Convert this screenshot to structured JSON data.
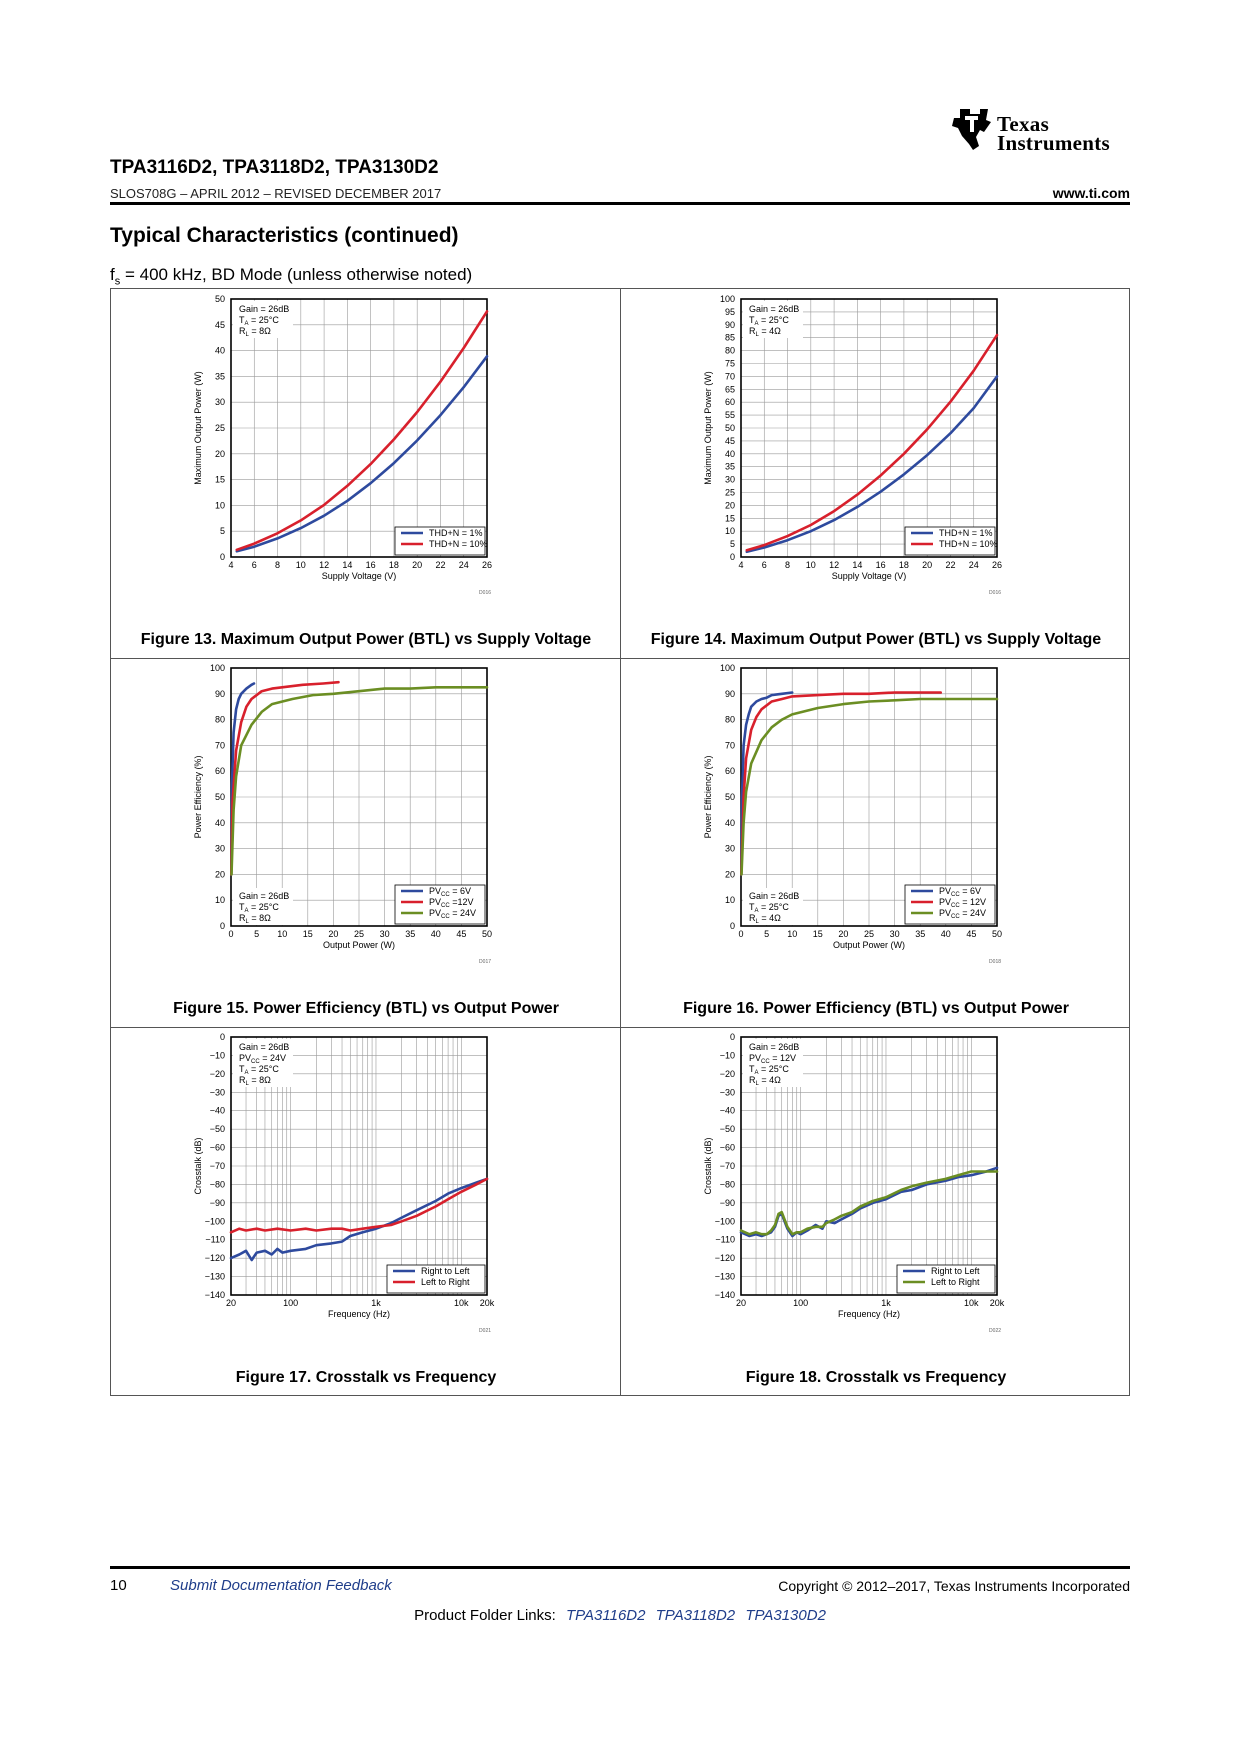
{
  "header": {
    "logo_line1": "Texas",
    "logo_line2": "Instruments",
    "title": "TPA3116D2, TPA3118D2, TPA3130D2",
    "doc_id": "SLOS708G – APRIL 2012 – REVISED DECEMBER 2017",
    "url": "www.ti.com"
  },
  "section": {
    "heading": "Typical Characteristics (continued)",
    "conditions_prefix": "f",
    "conditions_sub": "s",
    "conditions_rest": " = 400 kHz, BD Mode (unless otherwise noted)"
  },
  "footer": {
    "page_number": "10",
    "feedback": "Submit Documentation Feedback",
    "copyright": "Copyright © 2012–2017, Texas Instruments Incorporated",
    "folder_links_label": "Product Folder Links:",
    "folder_links": [
      "TPA3116D2",
      "TPA3118D2",
      "TPA3130D2"
    ]
  },
  "colors": {
    "blue": "#2e4a9e",
    "red": "#d8202c",
    "green": "#6b8e23"
  },
  "chart_data": [
    {
      "id": "fig13",
      "type": "line",
      "caption": "Figure 13. Maximum Output Power (BTL) vs Supply Voltage",
      "code": "D016",
      "xlabel": "Supply Voltage (V)",
      "ylabel": "Maximum Output Power (W)",
      "xscale": "linear",
      "xlim": [
        4,
        26
      ],
      "ylim": [
        0,
        50
      ],
      "xticks": [
        4,
        6,
        8,
        10,
        12,
        14,
        16,
        18,
        20,
        22,
        24,
        26
      ],
      "yticks": [
        0,
        5,
        10,
        15,
        20,
        25,
        30,
        35,
        40,
        45,
        50
      ],
      "grid": true,
      "conditions": [
        "Gain = 26dB",
        "TA = 25°C",
        "RL = 8Ω"
      ],
      "legend_position": "bottom-right",
      "series": [
        {
          "name": "THD+N = 1%",
          "color": "blue",
          "x": [
            4.5,
            6,
            8,
            10,
            12,
            14,
            16,
            18,
            20,
            22,
            24,
            26
          ],
          "y": [
            1.1,
            2.0,
            3.6,
            5.6,
            8.0,
            10.9,
            14.3,
            18.2,
            22.6,
            27.5,
            32.9,
            38.9
          ]
        },
        {
          "name": "THD+N = 10%",
          "color": "red",
          "x": [
            4.5,
            6,
            8,
            10,
            12,
            14,
            16,
            18,
            20,
            22,
            24,
            26
          ],
          "y": [
            1.4,
            2.6,
            4.6,
            7.1,
            10.1,
            13.8,
            18.0,
            22.8,
            28.1,
            34.0,
            40.5,
            47.6
          ]
        }
      ]
    },
    {
      "id": "fig14",
      "type": "line",
      "caption": "Figure 14. Maximum Output Power (BTL) vs Supply Voltage",
      "code": "D016",
      "xlabel": "Supply Voltage (V)",
      "ylabel": "Maximum Output Power (W)",
      "xscale": "linear",
      "xlim": [
        4,
        26
      ],
      "ylim": [
        0,
        100
      ],
      "xticks": [
        4,
        6,
        8,
        10,
        12,
        14,
        16,
        18,
        20,
        22,
        24,
        26
      ],
      "yticks": [
        0,
        5,
        10,
        15,
        20,
        25,
        30,
        35,
        40,
        45,
        50,
        55,
        60,
        65,
        70,
        75,
        80,
        85,
        90,
        95,
        100
      ],
      "grid": true,
      "conditions": [
        "Gain = 26dB",
        "TA = 25°C",
        "RL = 4Ω"
      ],
      "legend_position": "bottom-right",
      "series": [
        {
          "name": "THD+N = 1%",
          "color": "blue",
          "x": [
            4.5,
            6,
            8,
            10,
            12,
            14,
            16,
            18,
            20,
            22,
            24,
            26
          ],
          "y": [
            2.0,
            3.7,
            6.5,
            10.0,
            14.3,
            19.4,
            25.3,
            32.0,
            39.5,
            48.0,
            57.7,
            70.0
          ]
        },
        {
          "name": "THD+N = 10%",
          "color": "red",
          "x": [
            4.5,
            6,
            8,
            10,
            12,
            14,
            16,
            18,
            20,
            22,
            24,
            26
          ],
          "y": [
            2.6,
            4.6,
            8.1,
            12.4,
            17.8,
            24.2,
            31.6,
            40.0,
            49.5,
            60.2,
            72.2,
            86.0
          ]
        }
      ]
    },
    {
      "id": "fig15",
      "type": "line",
      "caption": "Figure 15. Power Efficiency (BTL) vs Output Power",
      "code": "D017",
      "xlabel": "Output Power (W)",
      "ylabel": "Power Efficiency (%)",
      "xscale": "linear",
      "xlim": [
        0,
        50
      ],
      "ylim": [
        0,
        100
      ],
      "xticks": [
        0,
        5,
        10,
        15,
        20,
        25,
        30,
        35,
        40,
        45,
        50
      ],
      "yticks": [
        0,
        10,
        20,
        30,
        40,
        50,
        60,
        70,
        80,
        90,
        100
      ],
      "grid": true,
      "conditions": [
        "Gain = 26dB",
        "TA = 25°C",
        "RL = 8Ω"
      ],
      "legend_position": "bottom-right",
      "series": [
        {
          "name": "PVCC = 6V",
          "color": "blue",
          "x": [
            0.05,
            0.2,
            0.5,
            1.0,
            1.5,
            2.0,
            3.0,
            4.0,
            4.5
          ],
          "y": [
            20,
            55,
            75,
            84,
            88,
            90,
            92,
            93.5,
            94
          ]
        },
        {
          "name": "PVCC =12V",
          "color": "red",
          "x": [
            0.05,
            0.3,
            1,
            2,
            3,
            4,
            6,
            8,
            10,
            14,
            18,
            21
          ],
          "y": [
            20,
            48,
            68,
            79,
            85,
            88,
            91,
            92,
            92.5,
            93.5,
            94,
            94.5
          ]
        },
        {
          "name": "PVCC = 24V",
          "color": "green",
          "x": [
            0.1,
            0.5,
            1,
            2,
            4,
            6,
            8,
            12,
            16,
            20,
            25,
            30,
            35,
            40,
            45,
            50
          ],
          "y": [
            20,
            45,
            58,
            70,
            78,
            83,
            86,
            88,
            89.5,
            90,
            91,
            92,
            92,
            92.5,
            92.5,
            92.5
          ]
        }
      ]
    },
    {
      "id": "fig16",
      "type": "line",
      "caption": "Figure 16. Power Efficiency (BTL) vs Output Power",
      "code": "D018",
      "xlabel": "Output Power (W)",
      "ylabel": "Power Efficiency (%)",
      "xscale": "linear",
      "xlim": [
        0,
        50
      ],
      "ylim": [
        0,
        100
      ],
      "xticks": [
        0,
        5,
        10,
        15,
        20,
        25,
        30,
        35,
        40,
        45,
        50
      ],
      "yticks": [
        0,
        10,
        20,
        30,
        40,
        50,
        60,
        70,
        80,
        90,
        100
      ],
      "grid": true,
      "conditions": [
        "Gain = 26dB",
        "TA = 25°C",
        "RL = 4Ω"
      ],
      "legend_position": "bottom-right",
      "series": [
        {
          "name": "PVCC = 6V",
          "color": "blue",
          "x": [
            0.05,
            0.2,
            0.5,
            1.0,
            1.5,
            2.0,
            3.0,
            4.0,
            5.0,
            6.0,
            8.0,
            10.0
          ],
          "y": [
            20,
            50,
            70,
            78,
            82,
            85,
            87,
            88,
            88.5,
            89.5,
            90,
            90.5
          ]
        },
        {
          "name": "PVCC = 12V",
          "color": "red",
          "x": [
            0.05,
            0.5,
            1,
            2,
            3,
            4,
            6,
            8,
            10,
            15,
            20,
            25,
            30,
            35,
            39
          ],
          "y": [
            20,
            50,
            65,
            76,
            81,
            84,
            87,
            88,
            89,
            89.5,
            90,
            90,
            90.5,
            90.5,
            90.5
          ]
        },
        {
          "name": "PVCC = 24V",
          "color": "green",
          "x": [
            0.1,
            0.5,
            1,
            2,
            4,
            6,
            8,
            10,
            15,
            20,
            25,
            30,
            35,
            40,
            45,
            50
          ],
          "y": [
            20,
            40,
            52,
            63,
            72,
            77,
            80,
            82,
            84.5,
            86,
            87,
            87.5,
            88,
            88,
            88,
            88
          ]
        }
      ]
    },
    {
      "id": "fig17",
      "type": "line",
      "caption": "Figure 17. Crosstalk vs Frequency",
      "code": "D021",
      "xlabel": "Frequency (Hz)",
      "ylabel": "Crosstalk (dB)",
      "xscale": "log",
      "xlim": [
        20,
        20000
      ],
      "ylim": [
        -140,
        0
      ],
      "xticks": [
        20,
        100,
        1000,
        10000,
        20000
      ],
      "xticklabels": [
        "20",
        "100",
        "1k",
        "10k",
        "20k"
      ],
      "yticks": [
        0,
        -10,
        -20,
        -30,
        -40,
        -50,
        -60,
        -70,
        -80,
        -90,
        -100,
        -110,
        -120,
        -130,
        -140
      ],
      "grid": true,
      "conditions": [
        "Gain = 26dB",
        "PVCC = 24V",
        "TA = 25°C",
        "RL = 8Ω"
      ],
      "legend_position": "bottom-right",
      "series": [
        {
          "name": "Right to Left",
          "color": "blue",
          "x": [
            20,
            25,
            30,
            35,
            40,
            50,
            60,
            70,
            80,
            100,
            150,
            200,
            300,
            400,
            500,
            700,
            1000,
            1500,
            2000,
            3000,
            5000,
            7000,
            10000,
            15000,
            20000
          ],
          "y": [
            -120,
            -118,
            -116,
            -121,
            -117,
            -116,
            -118,
            -115,
            -117,
            -116,
            -115,
            -113,
            -112,
            -111,
            -108,
            -106,
            -104,
            -101,
            -98,
            -94,
            -89,
            -85,
            -82,
            -79,
            -77
          ]
        },
        {
          "name": "Left to Right",
          "color": "red",
          "x": [
            20,
            25,
            30,
            40,
            50,
            70,
            100,
            150,
            200,
            300,
            400,
            500,
            700,
            1000,
            1500,
            2000,
            3000,
            5000,
            7000,
            10000,
            15000,
            20000
          ],
          "y": [
            -106,
            -104,
            -105,
            -104,
            -105,
            -104,
            -105,
            -104,
            -105,
            -104,
            -104,
            -105,
            -104,
            -103,
            -102,
            -100,
            -97,
            -92,
            -88,
            -84,
            -80,
            -77
          ]
        }
      ]
    },
    {
      "id": "fig18",
      "type": "line",
      "caption": "Figure 18. Crosstalk vs Frequency",
      "code": "D022",
      "xlabel": "Frequency (Hz)",
      "ylabel": "Crosstalk (dB)",
      "xscale": "log",
      "xlim": [
        20,
        20000
      ],
      "ylim": [
        -140,
        0
      ],
      "xticks": [
        20,
        100,
        1000,
        10000,
        20000
      ],
      "xticklabels": [
        "20",
        "100",
        "1k",
        "10k",
        "20k"
      ],
      "yticks": [
        0,
        -10,
        -20,
        -30,
        -40,
        -50,
        -60,
        -70,
        -80,
        -90,
        -100,
        -110,
        -120,
        -130,
        -140
      ],
      "grid": true,
      "conditions": [
        "Gain = 26dB",
        "PVCC = 12V",
        "TA = 25°C",
        "RL = 4Ω"
      ],
      "legend_position": "bottom-right",
      "series": [
        {
          "name": "Right to Left",
          "color": "blue",
          "x": [
            20,
            25,
            30,
            35,
            40,
            45,
            50,
            55,
            60,
            70,
            80,
            90,
            100,
            120,
            150,
            180,
            200,
            250,
            300,
            400,
            500,
            700,
            1000,
            1500,
            2000,
            3000,
            5000,
            7000,
            10000,
            15000,
            20000
          ],
          "y": [
            -106,
            -108,
            -107,
            -108,
            -107,
            -106,
            -103,
            -97,
            -96,
            -104,
            -108,
            -106,
            -107,
            -105,
            -102,
            -104,
            -100,
            -101,
            -99,
            -96,
            -93,
            -90,
            -88,
            -84,
            -83,
            -80,
            -78,
            -76,
            -75,
            -73,
            -71
          ]
        },
        {
          "name": "Left to Right",
          "color": "green",
          "x": [
            20,
            25,
            30,
            35,
            40,
            45,
            50,
            55,
            60,
            70,
            80,
            90,
            100,
            120,
            150,
            180,
            200,
            250,
            300,
            400,
            500,
            700,
            1000,
            1500,
            2000,
            3000,
            5000,
            7000,
            10000,
            15000,
            20000
          ],
          "y": [
            -105,
            -107,
            -106,
            -107,
            -107,
            -105,
            -102,
            -96,
            -95,
            -103,
            -107,
            -106,
            -106,
            -104,
            -103,
            -103,
            -101,
            -99,
            -97,
            -95,
            -92,
            -89,
            -87,
            -83,
            -81,
            -79,
            -77,
            -75,
            -73,
            -73,
            -73
          ]
        }
      ]
    }
  ]
}
